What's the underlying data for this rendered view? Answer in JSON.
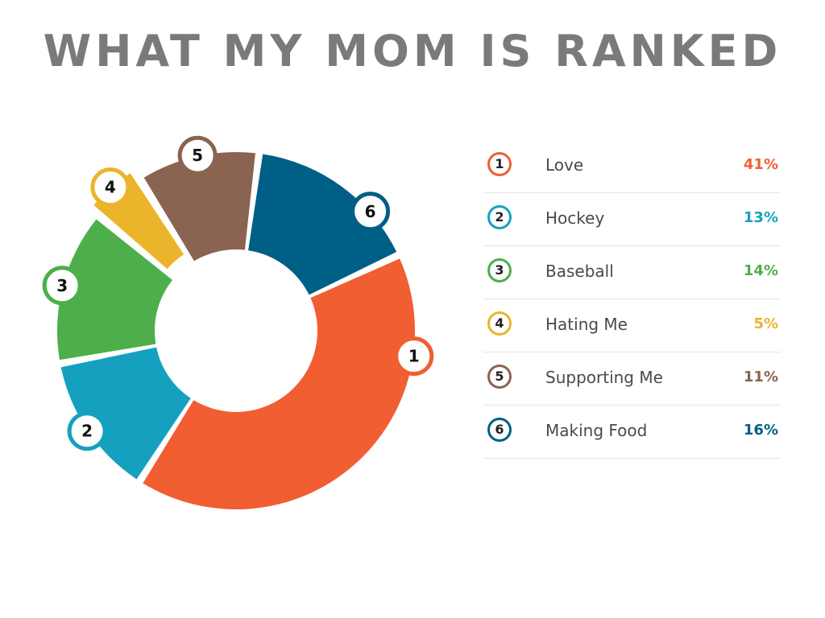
{
  "title": "WHAT MY MOM IS RANKED",
  "chart_data": {
    "type": "pie",
    "title": "WHAT MY MOM IS RANKED",
    "categories": [
      "Love",
      "Hockey",
      "Baseball",
      "Hating Me",
      "Supporting Me",
      "Making Food"
    ],
    "ranks": [
      "1",
      "2",
      "3",
      "4",
      "5",
      "6"
    ],
    "values": [
      41,
      13,
      14,
      5,
      11,
      16
    ],
    "value_labels": [
      "41%",
      "13%",
      "14%",
      "5%",
      "11%",
      "16%"
    ],
    "colors": [
      "#f05e32",
      "#16a0bf",
      "#4caf4b",
      "#ecb42a",
      "#8a6450",
      "#005f86"
    ],
    "donut": true,
    "legend_position": "right"
  }
}
